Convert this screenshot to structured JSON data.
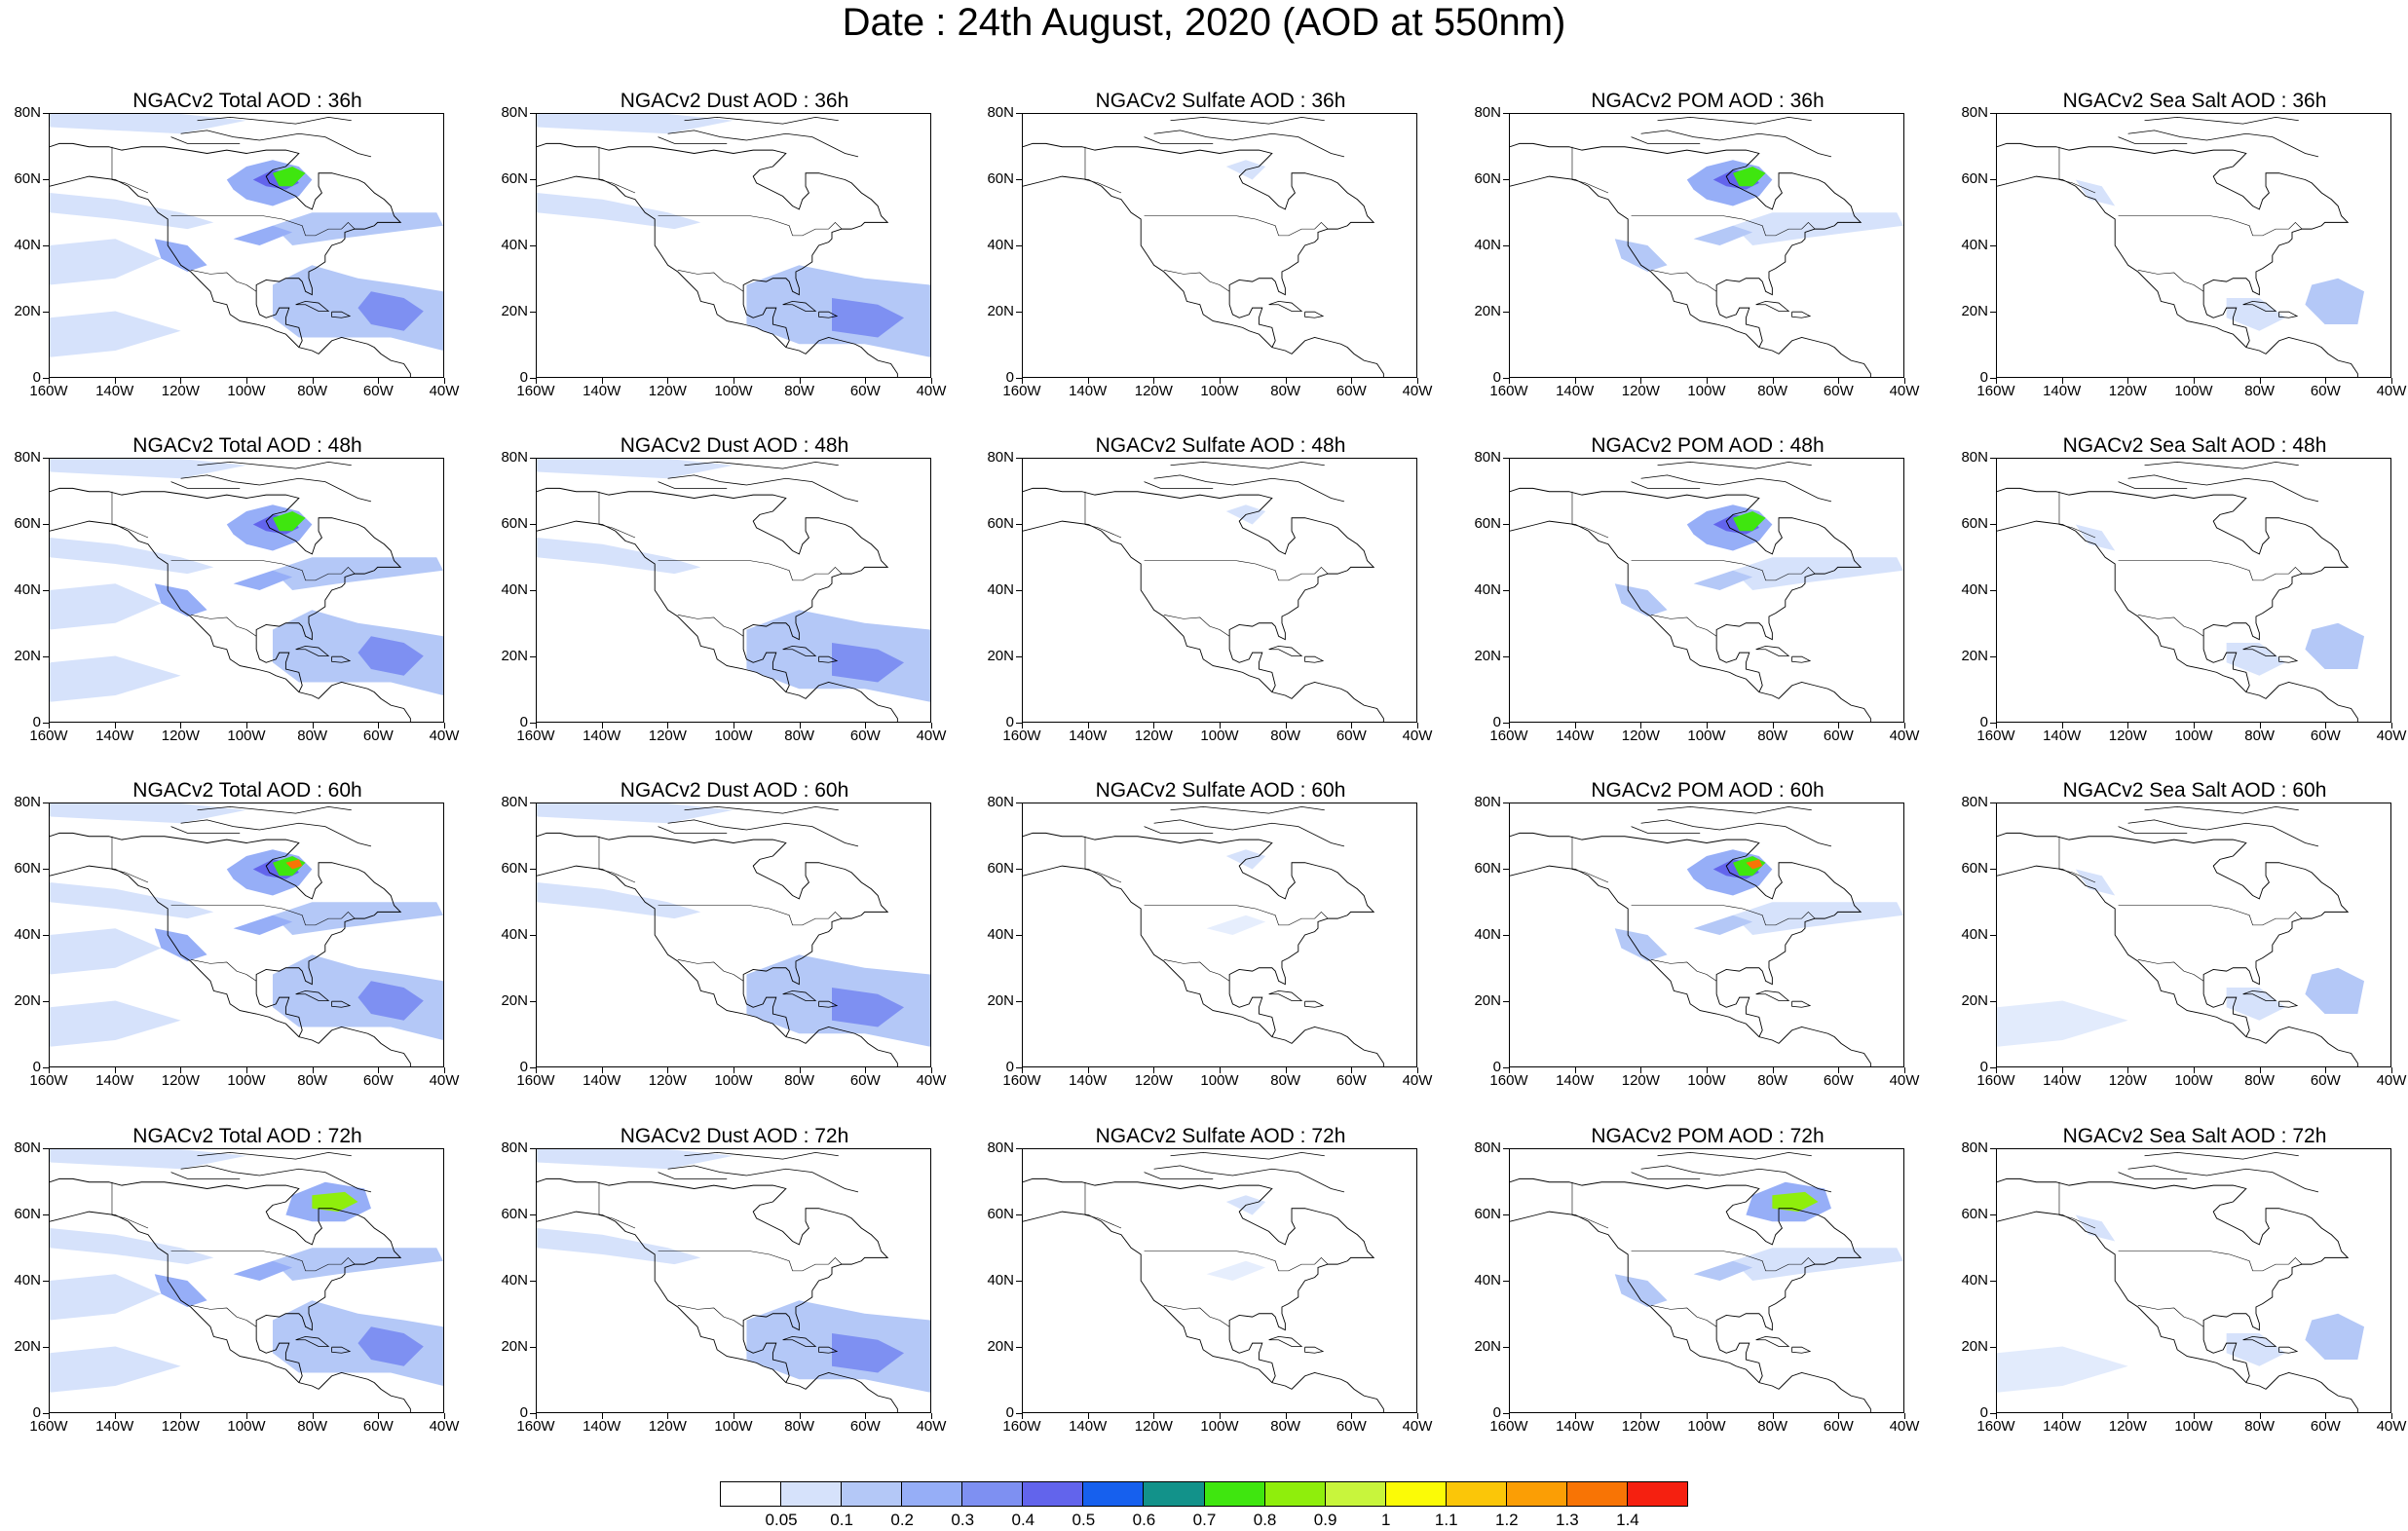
{
  "title": "Date : 24th August, 2020 (AOD at 550nm)",
  "lat_labels": [
    "80N",
    "60N",
    "40N",
    "20N",
    "0"
  ],
  "lon_labels": [
    "160W",
    "140W",
    "120W",
    "100W",
    "80W",
    "60W",
    "40W"
  ],
  "panels": [
    {
      "title": "NGACv2 Total AOD : 36h",
      "species": "total",
      "hour": 36
    },
    {
      "title": "NGACv2 Dust AOD : 36h",
      "species": "dust",
      "hour": 36
    },
    {
      "title": "NGACv2 Sulfate AOD : 36h",
      "species": "sulfate",
      "hour": 36
    },
    {
      "title": "NGACv2 POM AOD : 36h",
      "species": "pom",
      "hour": 36
    },
    {
      "title": "NGACv2 Sea Salt AOD : 36h",
      "species": "seasalt",
      "hour": 36
    },
    {
      "title": "NGACv2 Total AOD : 48h",
      "species": "total",
      "hour": 48
    },
    {
      "title": "NGACv2 Dust AOD : 48h",
      "species": "dust",
      "hour": 48
    },
    {
      "title": "NGACv2 Sulfate AOD : 48h",
      "species": "sulfate",
      "hour": 48
    },
    {
      "title": "NGACv2 POM AOD : 48h",
      "species": "pom",
      "hour": 48
    },
    {
      "title": "NGACv2 Sea Salt AOD : 48h",
      "species": "seasalt",
      "hour": 48
    },
    {
      "title": "NGACv2 Total AOD : 60h",
      "species": "total",
      "hour": 60
    },
    {
      "title": "NGACv2 Dust AOD : 60h",
      "species": "dust",
      "hour": 60
    },
    {
      "title": "NGACv2 Sulfate AOD : 60h",
      "species": "sulfate",
      "hour": 60
    },
    {
      "title": "NGACv2 POM AOD : 60h",
      "species": "pom",
      "hour": 60
    },
    {
      "title": "NGACv2 Sea Salt AOD : 60h",
      "species": "seasalt",
      "hour": 60
    },
    {
      "title": "NGACv2 Total AOD : 72h",
      "species": "total",
      "hour": 72
    },
    {
      "title": "NGACv2 Dust AOD : 72h",
      "species": "dust",
      "hour": 72
    },
    {
      "title": "NGACv2 Sulfate AOD : 72h",
      "species": "sulfate",
      "hour": 72
    },
    {
      "title": "NGACv2 POM AOD : 72h",
      "species": "pom",
      "hour": 72
    },
    {
      "title": "NGACv2 Sea Salt  AOD : 72h",
      "species": "seasalt",
      "hour": 72
    }
  ],
  "colorbar": {
    "colors": [
      "#ffffff",
      "#d6e2fb",
      "#b4c8f7",
      "#96aef7",
      "#7e90f2",
      "#6264ec",
      "#1660ee",
      "#12928a",
      "#3fe60f",
      "#8fee0c",
      "#c8f53c",
      "#fbfb06",
      "#fbc608",
      "#fb9e05",
      "#f87405",
      "#f52010"
    ],
    "labels": [
      "0.05",
      "0.1",
      "0.2",
      "0.3",
      "0.4",
      "0.5",
      "0.6",
      "0.7",
      "0.8",
      "0.9",
      "1",
      "1.1",
      "1.2",
      "1.3",
      "1.4"
    ]
  }
}
